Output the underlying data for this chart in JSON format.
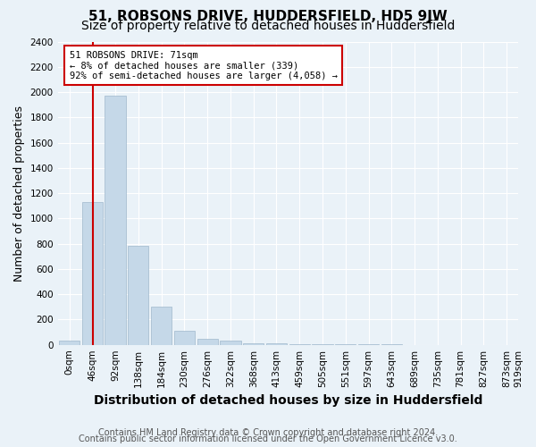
{
  "title": "51, ROBSONS DRIVE, HUDDERSFIELD, HD5 9JW",
  "subtitle": "Size of property relative to detached houses in Huddersfield",
  "xlabel": "Distribution of detached houses by size in Huddersfield",
  "ylabel": "Number of detached properties",
  "footer_line1": "Contains HM Land Registry data © Crown copyright and database right 2024.",
  "footer_line2": "Contains public sector information licensed under the Open Government Licence v3.0.",
  "bin_labels": [
    "0sqm",
    "46sqm",
    "92sqm",
    "138sqm",
    "184sqm",
    "230sqm",
    "276sqm",
    "322sqm",
    "368sqm",
    "413sqm",
    "459sqm",
    "505sqm",
    "551sqm",
    "597sqm",
    "643sqm",
    "689sqm",
    "735sqm",
    "781sqm",
    "827sqm",
    "873sqm",
    "919sqm"
  ],
  "bar_heights": [
    30,
    1130,
    1970,
    780,
    300,
    110,
    50,
    30,
    15,
    10,
    8,
    5,
    3,
    2,
    2,
    1,
    1,
    1,
    1,
    0
  ],
  "bar_color": "#c5d8e8",
  "bar_edge_color": "#a0b8cc",
  "annotation_text": "51 ROBSONS DRIVE: 71sqm\n← 8% of detached houses are smaller (339)\n92% of semi-detached houses are larger (4,058) →",
  "annotation_box_color": "#ffffff",
  "annotation_border_color": "#cc0000",
  "red_line_color": "#cc0000",
  "ylim": [
    0,
    2400
  ],
  "yticks": [
    0,
    200,
    400,
    600,
    800,
    1000,
    1200,
    1400,
    1600,
    1800,
    2000,
    2200,
    2400
  ],
  "bg_color": "#eaf2f8",
  "grid_color": "#ffffff",
  "title_fontsize": 11,
  "subtitle_fontsize": 10,
  "axis_label_fontsize": 9,
  "tick_fontsize": 7.5,
  "footer_fontsize": 7
}
